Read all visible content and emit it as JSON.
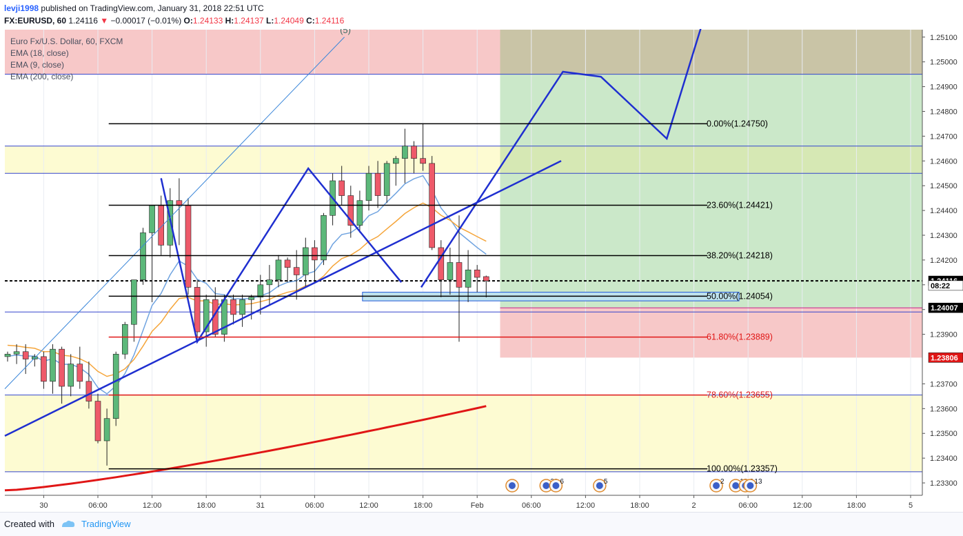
{
  "header": {
    "user": "levji1998",
    "published_text": "published on TradingView.com, January 31, 2018 22:51 UTC",
    "symbol": "FX:EURUSD, 60",
    "last": "1.24116",
    "change": "−0.00017 (−0.01%)",
    "o_label": "O:",
    "o": "1.24133",
    "h_label": "H:",
    "h": "1.24137",
    "l_label": "L:",
    "l": "1.24049",
    "c_label": "C:",
    "c": "1.24116"
  },
  "legend": {
    "title": "Euro Fx/U.S. Dollar, 60, FXCM",
    "ema18": "EMA (18, close)",
    "ema9": "EMA (9, close)",
    "ema200": "EMA (200, close)"
  },
  "footer": {
    "created_with": "Created with",
    "brand": "TradingView"
  },
  "colors": {
    "up": "#5cb87a",
    "down": "#ee5a6a",
    "pattern": "#1f2fd0",
    "ema_fast": "#6fa3e0",
    "ema_mid": "#f5a53a",
    "ema_slow": "#e01616",
    "zone_green": "#cbe8c9",
    "zone_red": "#f7c8c8",
    "zone_yellow": "#fdfbd2"
  },
  "chart_data": {
    "type": "candlestick",
    "symbol": "FX:EURUSD",
    "interval": "60",
    "ylim": [
      1.2325,
      1.2513
    ],
    "y_ticks": [
      "1.23300",
      "1.23400",
      "1.23500",
      "1.23600",
      "1.23700",
      "1.23900",
      "1.24000",
      "1.24100",
      "1.24200",
      "1.24300",
      "1.24400",
      "1.24500",
      "1.24600",
      "1.24700",
      "1.24800",
      "1.24900",
      "1.25000",
      "1.25100"
    ],
    "x_ticks": [
      {
        "label": "30",
        "bar": 4
      },
      {
        "label": "06:00",
        "bar": 10
      },
      {
        "label": "12:00",
        "bar": 16
      },
      {
        "label": "18:00",
        "bar": 22
      },
      {
        "label": "31",
        "bar": 28
      },
      {
        "label": "06:00",
        "bar": 34
      },
      {
        "label": "12:00",
        "bar": 40
      },
      {
        "label": "18:00",
        "bar": 46
      },
      {
        "label": "Feb",
        "bar": 52
      },
      {
        "label": "06:00",
        "bar": 58
      },
      {
        "label": "12:00",
        "bar": 64
      },
      {
        "label": "18:00",
        "bar": 70
      },
      {
        "label": "2",
        "bar": 76
      },
      {
        "label": "06:00",
        "bar": 82
      },
      {
        "label": "12:00",
        "bar": 88
      },
      {
        "label": "18:00",
        "bar": 94
      },
      {
        "label": "5",
        "bar": 100
      }
    ],
    "candles": [
      [
        1.2381,
        1.2383,
        1.2379,
        1.2382
      ],
      [
        1.2382,
        1.2386,
        1.2378,
        1.2383
      ],
      [
        1.2383,
        1.2386,
        1.2374,
        1.238
      ],
      [
        1.238,
        1.2382,
        1.2377,
        1.2381
      ],
      [
        1.2381,
        1.2383,
        1.2368,
        1.2371
      ],
      [
        1.2371,
        1.2386,
        1.2366,
        1.2384
      ],
      [
        1.2384,
        1.2385,
        1.2362,
        1.2369
      ],
      [
        1.2369,
        1.2382,
        1.2365,
        1.2378
      ],
      [
        1.2378,
        1.2385,
        1.2368,
        1.2371
      ],
      [
        1.2371,
        1.2379,
        1.236,
        1.2363
      ],
      [
        1.2363,
        1.2366,
        1.2346,
        1.2347
      ],
      [
        1.2347,
        1.236,
        1.2337,
        1.2356
      ],
      [
        1.2356,
        1.2383,
        1.2353,
        1.2382
      ],
      [
        1.2382,
        1.2395,
        1.238,
        1.2394
      ],
      [
        1.2394,
        1.2412,
        1.2387,
        1.2412
      ],
      [
        1.2412,
        1.2433,
        1.241,
        1.2431
      ],
      [
        1.2431,
        1.2442,
        1.2403,
        1.2442
      ],
      [
        1.2442,
        1.2446,
        1.2422,
        1.2426
      ],
      [
        1.2426,
        1.2449,
        1.2421,
        1.2444
      ],
      [
        1.2444,
        1.2453,
        1.2426,
        1.2442
      ],
      [
        1.2442,
        1.2445,
        1.2406,
        1.2409
      ],
      [
        1.2409,
        1.2412,
        1.2387,
        1.2391
      ],
      [
        1.2391,
        1.2406,
        1.2385,
        1.2404
      ],
      [
        1.2404,
        1.2409,
        1.2389,
        1.239
      ],
      [
        1.239,
        1.2406,
        1.2387,
        1.2404
      ],
      [
        1.2404,
        1.2406,
        1.2394,
        1.2398
      ],
      [
        1.2398,
        1.2406,
        1.2393,
        1.2404
      ],
      [
        1.2404,
        1.2406,
        1.2396,
        1.2405
      ],
      [
        1.2405,
        1.2414,
        1.2398,
        1.241
      ],
      [
        1.241,
        1.2418,
        1.2402,
        1.2412
      ],
      [
        1.2412,
        1.2422,
        1.2409,
        1.242
      ],
      [
        1.242,
        1.2421,
        1.2411,
        1.2417
      ],
      [
        1.2417,
        1.2424,
        1.2404,
        1.2414
      ],
      [
        1.2414,
        1.2429,
        1.2409,
        1.2425
      ],
      [
        1.2425,
        1.2428,
        1.2411,
        1.242
      ],
      [
        1.242,
        1.2439,
        1.2418,
        1.2438
      ],
      [
        1.2438,
        1.2455,
        1.2434,
        1.2452
      ],
      [
        1.2452,
        1.2458,
        1.2442,
        1.2446
      ],
      [
        1.2446,
        1.245,
        1.2429,
        1.2434
      ],
      [
        1.2434,
        1.2448,
        1.2431,
        1.2444
      ],
      [
        1.2444,
        1.2458,
        1.244,
        1.2455
      ],
      [
        1.2455,
        1.246,
        1.2441,
        1.2446
      ],
      [
        1.2446,
        1.246,
        1.2443,
        1.2459
      ],
      [
        1.2459,
        1.2462,
        1.245,
        1.2461
      ],
      [
        1.2461,
        1.2473,
        1.2451,
        1.2466
      ],
      [
        1.2466,
        1.2468,
        1.2455,
        1.2461
      ],
      [
        1.2461,
        1.2475,
        1.2456,
        1.2459
      ],
      [
        1.2459,
        1.2462,
        1.2424,
        1.2425
      ],
      [
        1.2425,
        1.2428,
        1.2405,
        1.2412
      ],
      [
        1.2412,
        1.2425,
        1.2406,
        1.2419
      ],
      [
        1.2419,
        1.2438,
        1.2387,
        1.2409
      ],
      [
        1.2409,
        1.2424,
        1.2403,
        1.2416
      ],
      [
        1.2416,
        1.2418,
        1.2407,
        1.2413
      ],
      [
        1.24133,
        1.24137,
        1.24049,
        1.24116
      ]
    ],
    "ema": [
      {
        "name": "EMA (9, close)",
        "color": "#6fa3e0"
      },
      {
        "name": "EMA (18, close)",
        "color": "#f5a53a"
      },
      {
        "name": "EMA (200, close)",
        "color": "#e01616"
      }
    ],
    "fibonacci": [
      {
        "label": "0.00%(1.24750)",
        "price": 1.2475,
        "color": "#000000"
      },
      {
        "label": "23.60%(1.24421)",
        "price": 1.24421,
        "color": "#000000"
      },
      {
        "label": "38.20%(1.24218)",
        "price": 1.24218,
        "color": "#000000"
      },
      {
        "label": "50.00%(1.24054)",
        "price": 1.24054,
        "color": "#000000"
      },
      {
        "label": "61.80%(1.23889)",
        "price": 1.23889,
        "color": "#e01616"
      },
      {
        "label": "78.60%(1.23655)",
        "price": 1.23655,
        "color": "#e01616"
      },
      {
        "label": "100.00%(1.23357)",
        "price": 1.23357,
        "color": "#000000"
      }
    ],
    "price_labels": [
      {
        "label": "1.24116",
        "price": 1.24116,
        "bg": "#000000",
        "fg": "#ffffff"
      },
      {
        "label": "08:22",
        "price": 1.24097,
        "bg": "#ffffff",
        "fg": "#000000"
      },
      {
        "label": "1.24007",
        "price": 1.24007,
        "bg": "#000000",
        "fg": "#ffffff"
      },
      {
        "label": "1.23806",
        "price": 1.23806,
        "bg": "#e01616",
        "fg": "#ffffff"
      }
    ],
    "zones": [
      {
        "name": "red-zone-top",
        "price_from": 1.2513,
        "price_to": 1.2495,
        "from_bar": 0,
        "to_bar": 55,
        "color": "#f7c8c8"
      },
      {
        "name": "green-zone",
        "price_from": 1.2513,
        "price_to": 1.24007,
        "from_bar": 55,
        "to_bar": 168,
        "color": "#cbe8c9"
      },
      {
        "name": "yellow-zone-upper",
        "price_from": 1.2466,
        "price_to": 1.2455,
        "from_bar": 0,
        "to_bar": 168,
        "color": "#fdfbd2"
      },
      {
        "name": "red-zone-lower",
        "price_from": 1.24007,
        "price_to": 1.23806,
        "from_bar": 55,
        "to_bar": 168,
        "color": "#f7c8c8"
      },
      {
        "name": "yellow-zone-lower",
        "price_from": 1.23655,
        "price_to": 1.23345,
        "from_bar": 0,
        "to_bar": 168,
        "color": "#fdfbd2"
      }
    ],
    "calendar_events": [
      {
        "label": "",
        "bar": 99
      },
      {
        "label": "29",
        "bar": 106
      },
      {
        "label": "6",
        "bar": 108
      },
      {
        "label": "5",
        "bar": 117
      },
      {
        "label": "2",
        "bar": 141
      },
      {
        "label": "12",
        "bar": 145
      },
      {
        "label": "2",
        "bar": 147
      },
      {
        "label": "13",
        "bar": 148
      }
    ]
  }
}
